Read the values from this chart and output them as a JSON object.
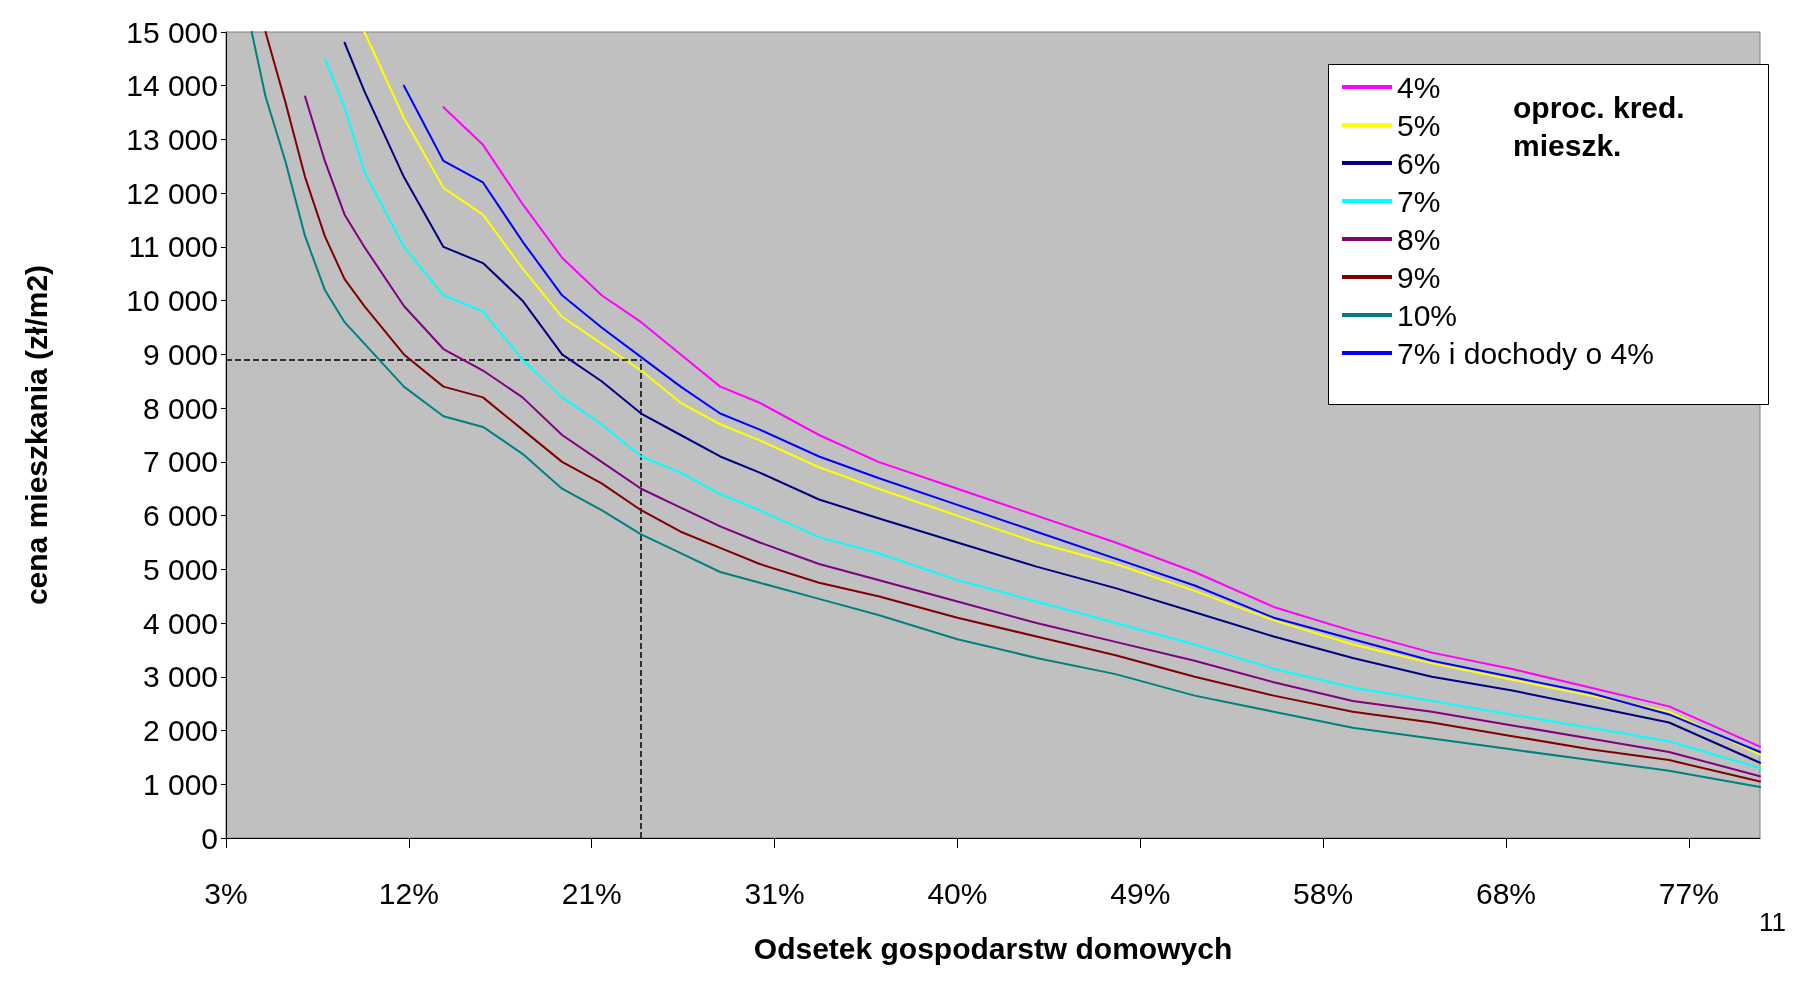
{
  "chart_data": {
    "type": "line",
    "xlabel": "Odsetek gospodarstw domowych",
    "ylabel": "cena mieszkania (zł/m2)",
    "legend_title": "oproc. kred. mieszk.",
    "legend": "top right",
    "grid": false,
    "marker": "none",
    "x": [
      4.3,
      5,
      6,
      7,
      8,
      9,
      10,
      12,
      14,
      16,
      18,
      20,
      22,
      24,
      26,
      28,
      30,
      33,
      36,
      40,
      44,
      48,
      52,
      56,
      60,
      64,
      68,
      72,
      76,
      80.6
    ],
    "xlim": [
      3,
      80.6
    ],
    "xticks": [
      {
        "value": 3,
        "label": "3%"
      },
      {
        "value": 12.25,
        "label": "12%"
      },
      {
        "value": 21.5,
        "label": "21%"
      },
      {
        "value": 30.75,
        "label": "31%"
      },
      {
        "value": 40,
        "label": "40%"
      },
      {
        "value": 49.25,
        "label": "49%"
      },
      {
        "value": 58.5,
        "label": "58%"
      },
      {
        "value": 67.75,
        "label": "68%"
      },
      {
        "value": 77,
        "label": "77%"
      }
    ],
    "ylim": [
      0,
      15000
    ],
    "yticks": [
      {
        "value": 0,
        "label": "0"
      },
      {
        "value": 1000,
        "label": "1 000"
      },
      {
        "value": 2000,
        "label": "2 000"
      },
      {
        "value": 3000,
        "label": "3 000"
      },
      {
        "value": 4000,
        "label": "4 000"
      },
      {
        "value": 5000,
        "label": "5 000"
      },
      {
        "value": 6000,
        "label": "6 000"
      },
      {
        "value": 7000,
        "label": "7 000"
      },
      {
        "value": 8000,
        "label": "8 000"
      },
      {
        "value": 9000,
        "label": "9 000"
      },
      {
        "value": 10000,
        "label": "10 000"
      },
      {
        "value": 11000,
        "label": "11 000"
      },
      {
        "value": 12000,
        "label": "12 000"
      },
      {
        "value": 13000,
        "label": "13 000"
      },
      {
        "value": 14000,
        "label": "14 000"
      },
      {
        "value": 15000,
        "label": "15 000"
      }
    ],
    "series": [
      {
        "name": "4%",
        "color": "#ff00ff",
        "values": [
          null,
          null,
          null,
          null,
          null,
          null,
          null,
          null,
          13600,
          12900,
          11800,
          10800,
          10100,
          9600,
          9000,
          8400,
          8100,
          7500,
          7000,
          6500,
          6000,
          5500,
          4950,
          4300,
          3850,
          3450,
          3150,
          2800,
          2450,
          1700
        ]
      },
      {
        "name": "5%",
        "color": "#ffff00",
        "values": [
          null,
          null,
          null,
          null,
          null,
          null,
          15000,
          13400,
          12100,
          11600,
          10600,
          9700,
          9200,
          8700,
          8100,
          7700,
          7400,
          6900,
          6500,
          6000,
          5500,
          5100,
          4600,
          4050,
          3600,
          3250,
          2950,
          2650,
          2350,
          1550
        ]
      },
      {
        "name": "6%",
        "color": "#000080",
        "values": [
          null,
          null,
          null,
          null,
          null,
          14800,
          13900,
          12300,
          11000,
          10700,
          10000,
          9000,
          8500,
          7900,
          7500,
          7100,
          6800,
          6300,
          5950,
          5500,
          5050,
          4650,
          4200,
          3750,
          3350,
          3000,
          2750,
          2450,
          2150,
          1400
        ]
      },
      {
        "name": "7%",
        "color": "#00ffff",
        "values": [
          null,
          null,
          null,
          null,
          14500,
          13600,
          12400,
          11000,
          10100,
          9800,
          8900,
          8200,
          7700,
          7100,
          6800,
          6400,
          6100,
          5600,
          5300,
          4800,
          4400,
          4000,
          3600,
          3150,
          2800,
          2550,
          2300,
          2050,
          1800,
          1300
        ]
      },
      {
        "name": "8%",
        "color": "#800080",
        "values": [
          null,
          null,
          null,
          13800,
          12600,
          11600,
          11000,
          9900,
          9100,
          8700,
          8200,
          7500,
          7000,
          6500,
          6150,
          5800,
          5500,
          5100,
          4800,
          4400,
          4000,
          3650,
          3300,
          2900,
          2550,
          2350,
          2100,
          1850,
          1600,
          1150
        ]
      },
      {
        "name": "9%",
        "color": "#800000",
        "values": [
          null,
          15000,
          13700,
          12300,
          11200,
          10400,
          9900,
          9000,
          8400,
          8200,
          7600,
          7000,
          6600,
          6100,
          5700,
          5400,
          5100,
          4750,
          4500,
          4100,
          3750,
          3400,
          3000,
          2650,
          2350,
          2150,
          1900,
          1650,
          1450,
          1050
        ]
      },
      {
        "name": "10%",
        "color": "#008080",
        "values": [
          15000,
          13800,
          12600,
          11200,
          10200,
          9600,
          9200,
          8400,
          7850,
          7650,
          7150,
          6500,
          6100,
          5650,
          5300,
          4950,
          4750,
          4450,
          4150,
          3700,
          3350,
          3050,
          2650,
          2350,
          2050,
          1850,
          1650,
          1450,
          1250,
          950
        ]
      },
      {
        "name": "7% i dochody o 4%",
        "color": "#0000ff",
        "values": [
          null,
          null,
          null,
          null,
          null,
          null,
          null,
          14000,
          12600,
          12200,
          11100,
          10100,
          9500,
          8950,
          8400,
          7900,
          7600,
          7100,
          6700,
          6200,
          5700,
          5200,
          4700,
          4100,
          3700,
          3300,
          3000,
          2700,
          2300,
          1600
        ]
      }
    ],
    "ref_lines": [
      {
        "axis": "y",
        "value": 8900,
        "color": "#000000",
        "line_style": "dashed"
      },
      {
        "axis": "x",
        "value": 24,
        "color": "#000000",
        "line_style": "dashed"
      }
    ],
    "annotations": [
      "11"
    ]
  }
}
